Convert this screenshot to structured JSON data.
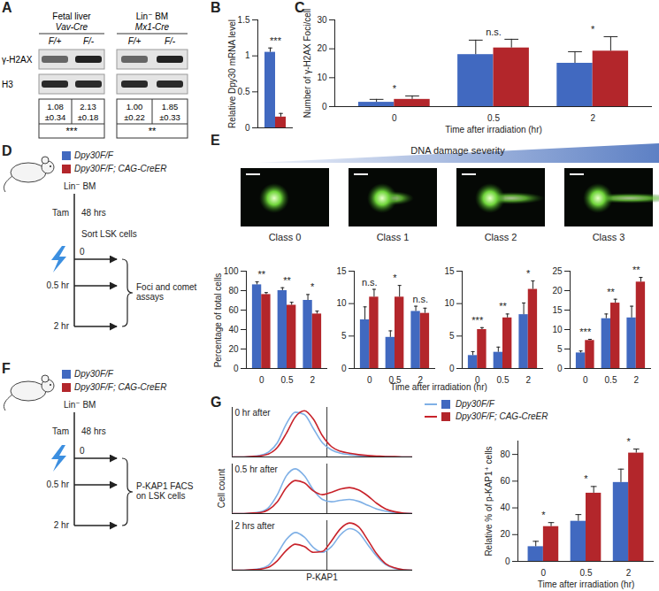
{
  "panel_labels": [
    "A",
    "B",
    "C",
    "D",
    "E",
    "F",
    "G"
  ],
  "blot": {
    "rows": [
      "γ-H2AX",
      "H3"
    ],
    "groups": [
      {
        "tissue": "Fetal liver",
        "cre": "Vav-Cre",
        "lanes": [
          "F/+",
          "F/-"
        ],
        "means": [
          "1.08",
          "2.13"
        ],
        "sds": [
          "±0.34",
          "±0.18"
        ],
        "significance": "***"
      },
      {
        "tissue": "Lin⁻ BM",
        "cre": "Mx1-Cre",
        "lanes": [
          "F/+",
          "F/-"
        ],
        "means": [
          "1.00",
          "1.85"
        ],
        "sds": [
          "±0.22",
          "±0.33"
        ],
        "significance": "**"
      }
    ]
  },
  "schemes": [
    {
      "legend": [
        {
          "name": "Dpy30F/F",
          "color": "#4169c0"
        },
        {
          "name": "Dpy30F/F; CAG-CreER",
          "color": "#b3262b"
        }
      ],
      "source": "Lin⁻ BM",
      "treatment": "Tam",
      "interval": "48 hrs",
      "step": "Sort LSK cells",
      "timepoints": [
        "0",
        "0.5 hr",
        "2 hr"
      ],
      "assay": "Foci and comet assays"
    },
    {
      "legend": [
        {
          "name": "Dpy30F/F",
          "color": "#4169c0"
        },
        {
          "name": "Dpy30F/F; CAG-CreER",
          "color": "#b3262b"
        }
      ],
      "source": "Lin⁻ BM",
      "treatment": "Tam",
      "interval": "48 hrs",
      "timepoints": [
        "0",
        "0.5 hr",
        "2 hr"
      ],
      "assay": "P-KAP1 FACS on LSK cells"
    }
  ],
  "comet": {
    "header": "DNA damage severity",
    "y_label": "Percentage of total cells",
    "x_label": "Time after irradiation (hr)"
  },
  "chart_data": [
    {
      "type": "bar",
      "y_label": "Relative Dpy30 mRNA level",
      "categories": [
        null
      ],
      "series": [
        {
          "color": "#4169c0",
          "values": [
            1.05
          ],
          "errors": [
            0.06
          ]
        },
        {
          "color": "#b3262b",
          "values": [
            0.15
          ],
          "errors": [
            0.05
          ]
        }
      ],
      "ylim": [
        0,
        1.5
      ],
      "yticks": [
        0,
        0.5,
        1,
        1.5
      ],
      "annotations": [
        "***"
      ],
      "tick_labels": "y"
    },
    {
      "type": "bar",
      "y_label": "Number of γ-H2AX Foci/cell",
      "x_label": "Time after irradiation (hr)",
      "categories": [
        "0",
        "0.5",
        "2"
      ],
      "series": [
        {
          "color": "#4169c0",
          "values": [
            1.5,
            18,
            15
          ],
          "errors": [
            1,
            5,
            4
          ]
        },
        {
          "color": "#b3262b",
          "values": [
            2.5,
            20.3,
            19.2
          ],
          "errors": [
            1.2,
            3,
            5
          ]
        }
      ],
      "ylim": [
        0,
        30
      ],
      "yticks": [
        0,
        10,
        20,
        30
      ],
      "annotations": [
        "*",
        "n.s.",
        "*"
      ]
    },
    {
      "type": "bar",
      "title": "Class 0",
      "categories": [
        "0",
        "0.5",
        "2"
      ],
      "series": [
        {
          "color": "#4169c0",
          "values": [
            86,
            80,
            70
          ],
          "errors": [
            3,
            3,
            6
          ]
        },
        {
          "color": "#b3262b",
          "values": [
            76,
            65,
            56
          ],
          "errors": [
            2,
            3,
            3
          ]
        }
      ],
      "ylim": [
        0,
        100
      ],
      "yticks": [
        0,
        20,
        40,
        60,
        80,
        100
      ],
      "annotations": [
        "**",
        "**",
        "*"
      ]
    },
    {
      "type": "bar",
      "title": "Class 1",
      "categories": [
        "0",
        "0.5",
        "2"
      ],
      "series": [
        {
          "color": "#4169c0",
          "values": [
            7.5,
            4.8,
            8.8
          ],
          "errors": [
            2,
            1,
            0.8
          ]
        },
        {
          "color": "#b3262b",
          "values": [
            11,
            11,
            8.5
          ],
          "errors": [
            1.2,
            1.8,
            0.8
          ]
        }
      ],
      "ylim": [
        0,
        15
      ],
      "yticks": [
        0,
        5,
        10,
        15
      ],
      "annotations": [
        "n.s.",
        "*",
        "n.s."
      ]
    },
    {
      "type": "bar",
      "title": "Class 2",
      "categories": [
        "0",
        "0.5",
        "2"
      ],
      "series": [
        {
          "color": "#4169c0",
          "values": [
            2,
            2.5,
            8.3
          ],
          "errors": [
            0.6,
            0.8,
            1.8
          ]
        },
        {
          "color": "#b3262b",
          "values": [
            6,
            7.8,
            12.2
          ],
          "errors": [
            0.3,
            0.6,
            1.3
          ]
        }
      ],
      "ylim": [
        0,
        15
      ],
      "yticks": [
        0,
        5,
        10,
        15
      ],
      "annotations": [
        "***",
        "**",
        "*"
      ]
    },
    {
      "type": "bar",
      "title": "Class 3",
      "categories": [
        "0",
        "0.5",
        "2"
      ],
      "series": [
        {
          "color": "#4169c0",
          "values": [
            4,
            12.8,
            13
          ],
          "errors": [
            0.5,
            1.2,
            3
          ]
        },
        {
          "color": "#b3262b",
          "values": [
            7.2,
            16.8,
            22.2
          ],
          "errors": [
            0.3,
            1,
            1.2
          ]
        }
      ],
      "ylim": [
        0,
        25
      ],
      "yticks": [
        0,
        5,
        10,
        15,
        20,
        25
      ],
      "annotations": [
        "***",
        "**",
        "**"
      ]
    },
    {
      "type": "line",
      "x_label": "P-KAP1",
      "y_label": "Cell count",
      "x": [
        0,
        1,
        2,
        3,
        4,
        5,
        6,
        7,
        8,
        9,
        10,
        11,
        12,
        13,
        14,
        15,
        16,
        17,
        18,
        19,
        20
      ],
      "xlim": [
        0,
        20
      ],
      "ylim": [
        0,
        105
      ],
      "gate": 10.5,
      "tick_labels": false,
      "facets": [
        {
          "title": "0 hr after",
          "series": [
            {
              "name": "Dpy30F/F",
              "color": "#7fb0e6",
              "values": [
                0,
                0,
                1,
                3,
                10,
                30,
                70,
                95,
                90,
                60,
                30,
                15,
                8,
                5,
                3,
                2,
                1,
                1,
                0,
                0,
                0
              ]
            },
            {
              "name": "Dpy30F/F; CAG-CreER",
              "color": "#c8232b",
              "values": [
                0,
                0,
                1,
                2,
                6,
                20,
                50,
                85,
                98,
                80,
                45,
                22,
                12,
                8,
                5,
                3,
                2,
                1,
                1,
                0,
                0
              ]
            }
          ]
        },
        {
          "title": "0.5 hr after",
          "series": [
            {
              "name": "Dpy30F/F",
              "color": "#7fb0e6",
              "values": [
                0,
                0,
                1,
                3,
                12,
                40,
                80,
                95,
                80,
                50,
                30,
                25,
                28,
                30,
                26,
                18,
                10,
                5,
                2,
                1,
                0
              ]
            },
            {
              "name": "Dpy30F/F; CAG-CreER",
              "color": "#c8232b",
              "values": [
                0,
                0,
                1,
                2,
                8,
                25,
                55,
                70,
                65,
                48,
                40,
                45,
                52,
                55,
                50,
                38,
                22,
                10,
                4,
                1,
                0
              ]
            }
          ]
        },
        {
          "title": "2 hrs after",
          "series": [
            {
              "name": "Dpy30F/F",
              "color": "#7fb0e6",
              "values": [
                0,
                0,
                1,
                3,
                10,
                35,
                65,
                80,
                70,
                48,
                38,
                50,
                75,
                88,
                80,
                55,
                30,
                12,
                4,
                1,
                0
              ]
            },
            {
              "name": "Dpy30F/F; CAG-CreER",
              "color": "#c8232b",
              "values": [
                0,
                0,
                1,
                2,
                6,
                20,
                42,
                55,
                50,
                38,
                40,
                62,
                88,
                100,
                92,
                65,
                35,
                14,
                5,
                1,
                0
              ]
            }
          ]
        }
      ]
    },
    {
      "type": "bar",
      "y_label": "Relative % of p-KAP1⁺ cells",
      "x_label": "Time after irradiation (hr)",
      "categories": [
        "0",
        "0.5",
        "2"
      ],
      "series": [
        {
          "color": "#4169c0",
          "values": [
            11,
            30,
            59
          ],
          "errors": [
            4,
            5,
            10
          ]
        },
        {
          "color": "#b3262b",
          "values": [
            26,
            51,
            81
          ],
          "errors": [
            3,
            5,
            3
          ]
        }
      ],
      "ylim": [
        0,
        90
      ],
      "yticks": [
        0,
        20,
        40,
        60,
        80
      ],
      "annotations": [
        "*",
        "*",
        "*"
      ]
    }
  ]
}
